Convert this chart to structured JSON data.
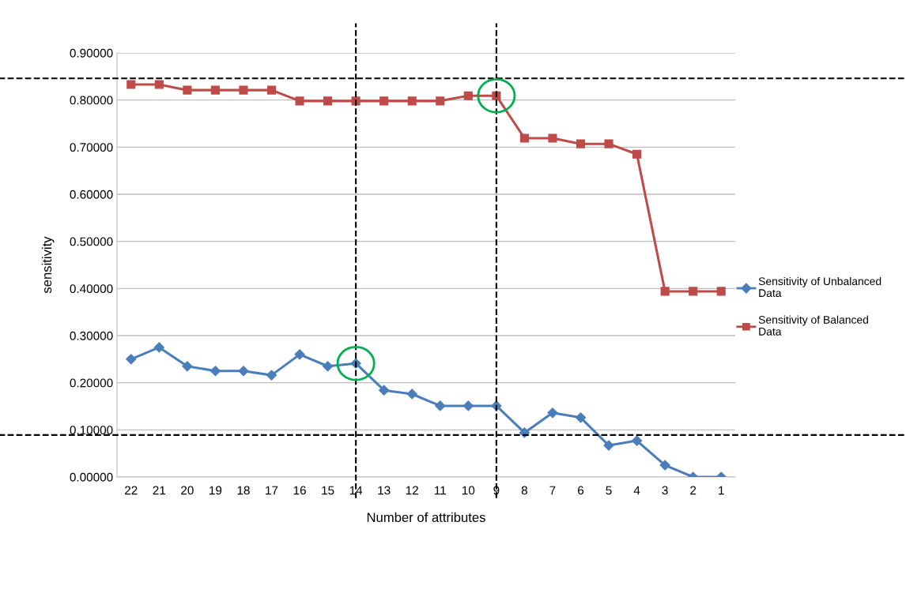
{
  "chart_data": {
    "type": "line",
    "xlabel": "Number of attributes",
    "ylabel": "sensitivity",
    "categories": [
      "22",
      "21",
      "20",
      "19",
      "18",
      "17",
      "16",
      "15",
      "14",
      "13",
      "12",
      "11",
      "10",
      "9",
      "8",
      "7",
      "6",
      "5",
      "4",
      "3",
      "2",
      "1"
    ],
    "series": [
      {
        "name": "Sensitivity of Unbalanced Data",
        "color": "#4a7ebb",
        "marker": "diamond",
        "values": [
          0.25,
          0.275,
          0.235,
          0.225,
          0.225,
          0.216,
          0.26,
          0.235,
          0.241,
          0.184,
          0.176,
          0.151,
          0.151,
          0.151,
          0.094,
          0.136,
          0.126,
          0.067,
          0.077,
          0.025,
          0.0,
          0.0
        ]
      },
      {
        "name": "Sensitivity of Balanced Data",
        "color": "#be4b48",
        "marker": "square",
        "values": [
          0.833,
          0.833,
          0.821,
          0.821,
          0.821,
          0.821,
          0.798,
          0.798,
          0.798,
          0.798,
          0.798,
          0.798,
          0.809,
          0.809,
          0.719,
          0.719,
          0.707,
          0.707,
          0.685,
          0.394,
          0.394,
          0.394
        ]
      }
    ],
    "ylim": [
      0,
      0.9
    ],
    "yticks": [
      {
        "value": 0,
        "label": "0.00000"
      },
      {
        "value": 0.1,
        "label": "0.10000"
      },
      {
        "value": 0.2,
        "label": "0.20000"
      },
      {
        "value": 0.3,
        "label": "0.30000"
      },
      {
        "value": 0.4,
        "label": "0.40000"
      },
      {
        "value": 0.5,
        "label": "0.50000"
      },
      {
        "value": 0.6,
        "label": "0.60000"
      },
      {
        "value": 0.7,
        "label": "0.70000"
      },
      {
        "value": 0.8,
        "label": "0.80000"
      },
      {
        "value": 0.9,
        "label": "0.90000"
      }
    ],
    "ref_lines": [
      {
        "axis": "y",
        "value": 0.846,
        "color": "#000000",
        "line_style": "dashed"
      },
      {
        "axis": "y",
        "value": 0.089,
        "color": "#000000",
        "line_style": "dashed"
      },
      {
        "axis": "x",
        "value": "14",
        "color": "#000000",
        "line_style": "dashed"
      },
      {
        "axis": "x",
        "value": "9",
        "color": "#000000",
        "line_style": "dashed"
      }
    ],
    "grid": "y",
    "legend": "right"
  }
}
